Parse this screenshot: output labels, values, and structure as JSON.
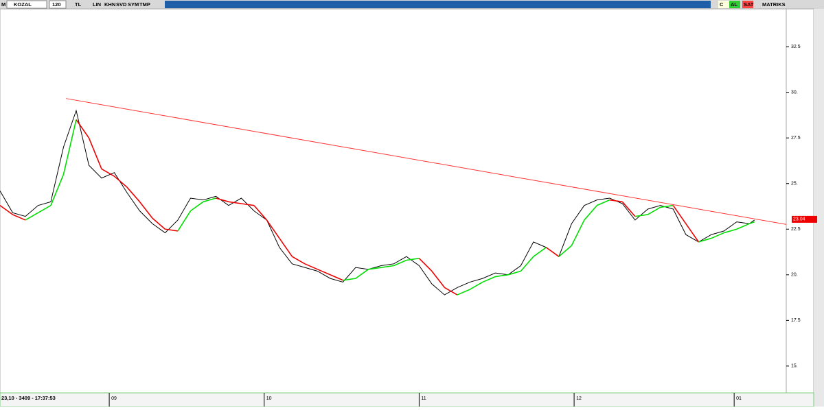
{
  "toolbar": {
    "menu": "M",
    "symbol": "KOZAL",
    "period": "120",
    "currency": "TL",
    "buttons": [
      "LIN",
      "KHN",
      "SVD",
      "SYM",
      "TMP"
    ],
    "right": [
      "C",
      "AL",
      "SAT",
      "MATRIKS"
    ]
  },
  "status": "23,10 - 3409 - 17:37:53",
  "chart_data": {
    "type": "line",
    "x": [
      0,
      5,
      10,
      15,
      20,
      25,
      30,
      35,
      40,
      45,
      50,
      55,
      60,
      65,
      70,
      75,
      80,
      85,
      90,
      95,
      100,
      105,
      110,
      115,
      120,
      125,
      130,
      135,
      140,
      145,
      150,
      155,
      160,
      165,
      170,
      175,
      180,
      185,
      190,
      195,
      200,
      205,
      210,
      215,
      220,
      225,
      230,
      235,
      240,
      245,
      250,
      255,
      260,
      265,
      270,
      275,
      280,
      285,
      290,
      295,
      297
    ],
    "series": [
      {
        "color": "#000000",
        "values": [
          24.6,
          23.4,
          23.2,
          23.8,
          24.0,
          27.0,
          29.0,
          26.0,
          25.3,
          25.6,
          24.5,
          23.5,
          22.8,
          22.3,
          23.0,
          24.2,
          24.1,
          24.3,
          23.8,
          24.2,
          23.5,
          23.0,
          21.5,
          20.6,
          20.4,
          20.2,
          19.8,
          19.6,
          20.4,
          20.3,
          20.5,
          20.6,
          21.0,
          20.5,
          19.5,
          18.9,
          19.3,
          19.6,
          19.8,
          20.1,
          20.0,
          20.5,
          21.8,
          21.5,
          21.0,
          22.8,
          23.8,
          24.1,
          24.2,
          23.9,
          23.0,
          23.6,
          23.8,
          23.6,
          22.2,
          21.8,
          22.2,
          22.4,
          22.9,
          22.8,
          23.0
        ]
      },
      {
        "color": "#00dd00",
        "down_color": "#ee0000",
        "values": [
          23.8,
          23.3,
          23.0,
          23.4,
          23.8,
          25.5,
          28.5,
          27.5,
          25.8,
          25.4,
          24.8,
          24.0,
          23.1,
          22.5,
          22.4,
          23.5,
          24.0,
          24.2,
          24.0,
          23.9,
          23.8,
          23.0,
          22.0,
          21.0,
          20.6,
          20.3,
          20.0,
          19.7,
          19.8,
          20.3,
          20.4,
          20.5,
          20.8,
          20.9,
          20.2,
          19.3,
          18.9,
          19.2,
          19.6,
          19.9,
          20.0,
          20.2,
          21.0,
          21.5,
          21.0,
          21.6,
          23.0,
          23.8,
          24.1,
          24.0,
          23.2,
          23.3,
          23.7,
          23.8,
          22.8,
          21.8,
          22.0,
          22.3,
          22.5,
          22.8,
          22.9
        ]
      }
    ],
    "trendline": {
      "color": "#ff3333",
      "x": [
        26,
        309.5
      ],
      "values": [
        29.66,
        22.76
      ]
    },
    "last_price": {
      "value": 23.04,
      "color": "#ee0000"
    },
    "xlim": [
      0,
      309.5
    ],
    "xticks": [
      {
        "value": 43,
        "label": "09"
      },
      {
        "value": 104,
        "label": "10"
      },
      {
        "value": 165,
        "label": "11"
      },
      {
        "value": 226,
        "label": "12"
      },
      {
        "value": 289,
        "label": "01"
      }
    ],
    "ylim": [
      13.53,
      34.57
    ],
    "yticks": [
      {
        "value": 15,
        "label": "15."
      },
      17.5,
      {
        "value": 20,
        "label": "20."
      },
      22.5,
      {
        "value": 25,
        "label": "25."
      },
      27.5,
      {
        "value": 30,
        "label": "30."
      },
      32.5
    ]
  }
}
